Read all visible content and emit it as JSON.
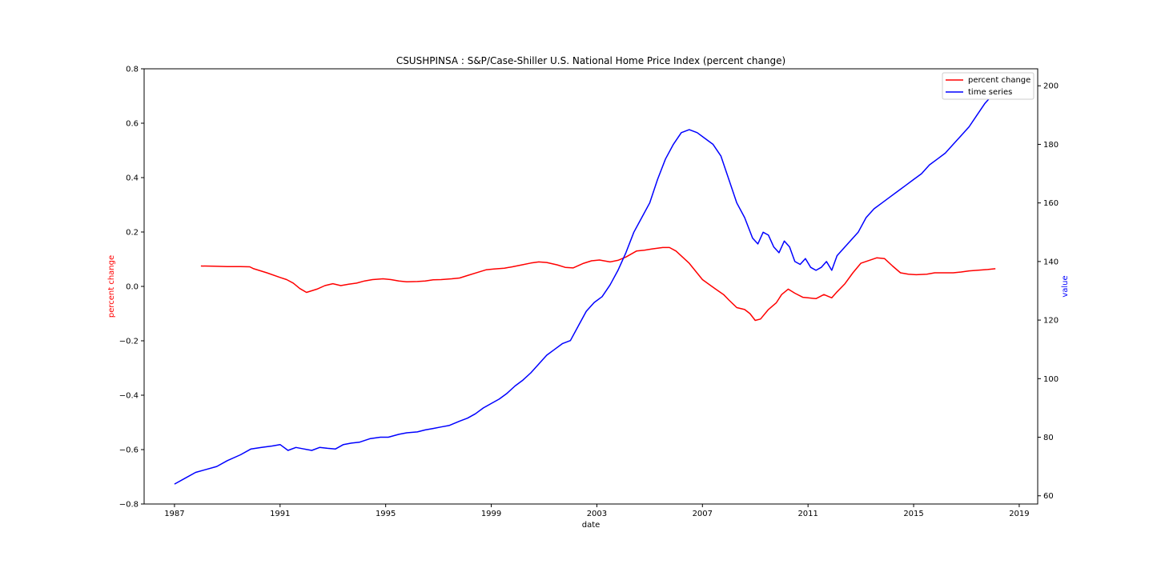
{
  "chart_data": {
    "type": "line",
    "title": "CSUSHPINSA :  S&P/Case-Shiller U.S. National Home Price Index (percent change)",
    "xlabel": "date",
    "ylabel_left": "percent change",
    "ylabel_right": "value",
    "xlim": [
      1985.85,
      2019.7
    ],
    "ylim_left": [
      -0.8,
      0.8
    ],
    "ylim_right": [
      57.2,
      205.8
    ],
    "x_ticks": [
      1987,
      1991,
      1995,
      1999,
      2003,
      2007,
      2011,
      2015,
      2019
    ],
    "y_ticks_left": [
      -0.8,
      -0.6,
      -0.4,
      -0.2,
      0.0,
      0.2,
      0.4,
      0.6,
      0.8
    ],
    "y_tick_labels_left": [
      "−0.8",
      "−0.6",
      "−0.4",
      "−0.2",
      "0.0",
      "0.2",
      "0.4",
      "0.6",
      "0.8"
    ],
    "y_ticks_right": [
      60,
      80,
      100,
      120,
      140,
      160,
      180,
      200
    ],
    "grid": false,
    "legend_position": "top-right",
    "colors": {
      "percent_change": "#ff0000",
      "time_series": "#0000ff",
      "left_axis_label": "#ff0000",
      "right_axis_label": "#0000ff"
    },
    "series": [
      {
        "name": "percent change",
        "axis": "left",
        "color": "#ff0000",
        "x": [
          1988.0,
          1988.5,
          1989.0,
          1989.5,
          1989.85,
          1990.0,
          1990.5,
          1991.0,
          1991.25,
          1991.5,
          1991.75,
          1992.0,
          1992.4,
          1992.7,
          1993.0,
          1993.3,
          1993.6,
          1993.9,
          1994.2,
          1994.5,
          1994.9,
          1995.2,
          1995.5,
          1995.8,
          1996.2,
          1996.5,
          1996.8,
          1997.1,
          1997.5,
          1997.8,
          1998.1,
          1998.5,
          1998.8,
          1999.1,
          1999.5,
          1999.8,
          2000.1,
          2000.5,
          2000.8,
          2001.1,
          2001.5,
          2001.8,
          2002.1,
          2002.5,
          2002.8,
          2003.1,
          2003.5,
          2003.8,
          2004.1,
          2004.5,
          2004.8,
          2005.1,
          2005.5,
          2005.75,
          2006.0,
          2006.5,
          2007.0,
          2007.5,
          2007.8,
          2008.0,
          2008.3,
          2008.6,
          2008.8,
          2009.0,
          2009.2,
          2009.5,
          2009.8,
          2010.0,
          2010.25,
          2010.5,
          2010.8,
          2011.0,
          2011.3,
          2011.6,
          2011.9,
          2012.1,
          2012.4,
          2012.7,
          2013.0,
          2013.3,
          2013.6,
          2013.9,
          2014.2,
          2014.5,
          2014.8,
          2015.1,
          2015.5,
          2015.8,
          2016.1,
          2016.5,
          2016.8,
          2017.1,
          2017.5,
          2017.8,
          2018.1
        ],
        "values": [
          0.075,
          0.074,
          0.073,
          0.073,
          0.072,
          0.065,
          0.05,
          0.033,
          0.025,
          0.012,
          -0.008,
          -0.022,
          -0.01,
          0.003,
          0.01,
          0.003,
          0.008,
          0.012,
          0.02,
          0.025,
          0.028,
          0.025,
          0.02,
          0.017,
          0.018,
          0.02,
          0.024,
          0.025,
          0.028,
          0.031,
          0.04,
          0.052,
          0.061,
          0.064,
          0.067,
          0.072,
          0.078,
          0.086,
          0.09,
          0.088,
          0.079,
          0.07,
          0.068,
          0.085,
          0.094,
          0.097,
          0.09,
          0.096,
          0.108,
          0.13,
          0.133,
          0.138,
          0.143,
          0.143,
          0.13,
          0.085,
          0.025,
          -0.01,
          -0.03,
          -0.05,
          -0.078,
          -0.085,
          -0.1,
          -0.125,
          -0.12,
          -0.085,
          -0.06,
          -0.03,
          -0.01,
          -0.025,
          -0.04,
          -0.042,
          -0.045,
          -0.03,
          -0.042,
          -0.02,
          0.01,
          0.05,
          0.085,
          0.095,
          0.105,
          0.102,
          0.075,
          0.05,
          0.045,
          0.043,
          0.045,
          0.05,
          0.05,
          0.05,
          0.053,
          0.057,
          0.06,
          0.062,
          0.065
        ]
      },
      {
        "name": "time series",
        "axis": "right",
        "color": "#0000ff",
        "x": [
          1987.0,
          1987.4,
          1987.8,
          1988.2,
          1988.6,
          1989.0,
          1989.5,
          1989.9,
          1990.3,
          1990.7,
          1991.0,
          1991.3,
          1991.6,
          1991.9,
          1992.2,
          1992.5,
          1992.8,
          1993.1,
          1993.4,
          1993.7,
          1994.0,
          1994.4,
          1994.8,
          1995.1,
          1995.5,
          1995.8,
          1996.2,
          1996.5,
          1996.8,
          1997.1,
          1997.4,
          1997.8,
          1998.1,
          1998.4,
          1998.7,
          1999.0,
          1999.3,
          1999.6,
          1999.9,
          2000.2,
          2000.5,
          2000.8,
          2001.1,
          2001.4,
          2001.7,
          2002.0,
          2002.3,
          2002.6,
          2002.9,
          2003.2,
          2003.5,
          2003.8,
          2004.1,
          2004.4,
          2004.7,
          2005.0,
          2005.3,
          2005.6,
          2005.9,
          2006.2,
          2006.5,
          2006.8,
          2007.1,
          2007.4,
          2007.7,
          2008.0,
          2008.3,
          2008.6,
          2008.9,
          2009.1,
          2009.3,
          2009.5,
          2009.7,
          2009.9,
          2010.1,
          2010.3,
          2010.5,
          2010.7,
          2010.9,
          2011.1,
          2011.3,
          2011.5,
          2011.7,
          2011.9,
          2012.1,
          2012.3,
          2012.6,
          2012.9,
          2013.2,
          2013.5,
          2013.8,
          2014.1,
          2014.4,
          2014.7,
          2015.0,
          2015.3,
          2015.6,
          2015.9,
          2016.2,
          2016.5,
          2016.8,
          2017.1,
          2017.4,
          2017.7,
          2018.0,
          2018.2
        ],
        "values": [
          64,
          66,
          68,
          69,
          70,
          72,
          74,
          76,
          76.5,
          77,
          77.5,
          75.5,
          76.5,
          76,
          75.5,
          76.5,
          76.2,
          76,
          77.5,
          78,
          78.3,
          79.5,
          80,
          80,
          81,
          81.5,
          81.8,
          82.5,
          83,
          83.5,
          84,
          85.5,
          86.5,
          88,
          90,
          91.5,
          93,
          95,
          97.5,
          99.5,
          102,
          105,
          108,
          110,
          112,
          113,
          118,
          123,
          126,
          128,
          132,
          137,
          143,
          150,
          155,
          160,
          168,
          175,
          180,
          184,
          185,
          184,
          182,
          180,
          176,
          168,
          160,
          155,
          148,
          146,
          150,
          149,
          145,
          143,
          147,
          145,
          140,
          139,
          141,
          138,
          137,
          138,
          140,
          137,
          142,
          144,
          147,
          150,
          155,
          158,
          160,
          162,
          164,
          166,
          168,
          170,
          173,
          175,
          177,
          180,
          183,
          186,
          190,
          194,
          197,
          200
        ]
      }
    ]
  }
}
